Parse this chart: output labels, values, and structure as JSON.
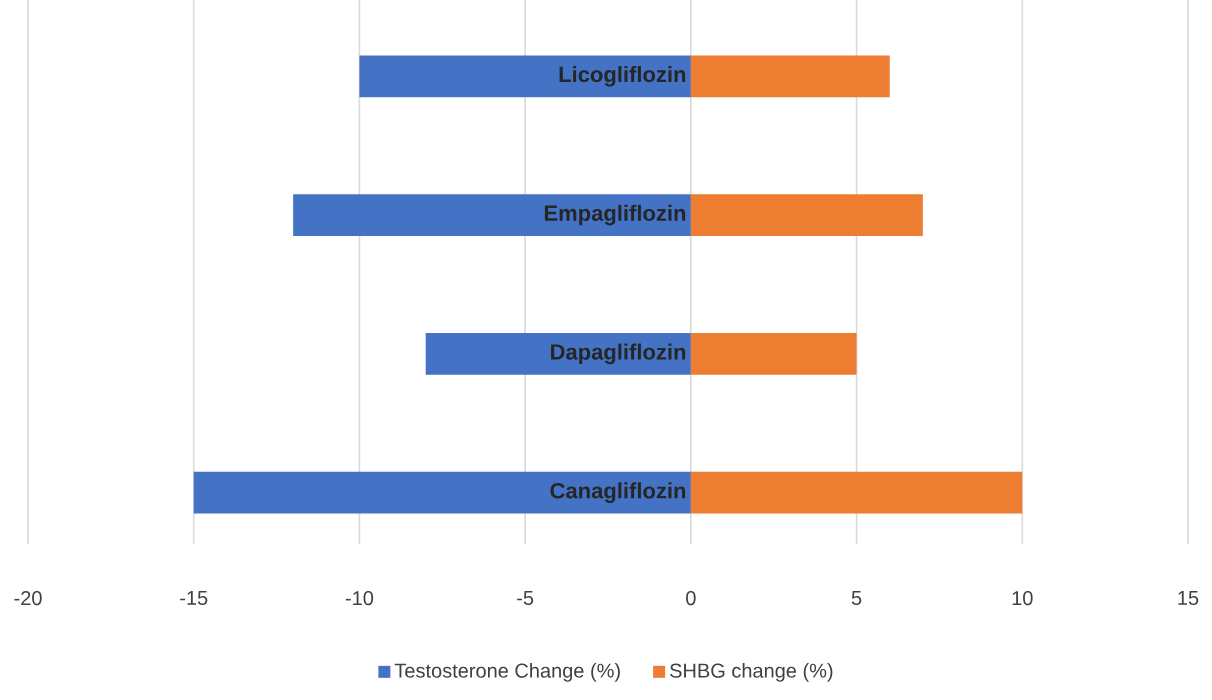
{
  "chart_data": {
    "type": "bar",
    "orientation": "horizontal",
    "stacked": true,
    "categories": [
      "Licogliflozin",
      "Empagliflozin",
      "Dapagliflozin",
      "Canagliflozin"
    ],
    "series": [
      {
        "name": "Testosterone Change (%)",
        "color": "#4472c4",
        "values": [
          -10,
          -12,
          -8,
          -15
        ]
      },
      {
        "name": "SHBG change (%)",
        "color": "#ed7d31",
        "values": [
          6,
          7,
          5,
          10
        ]
      }
    ],
    "xlim": [
      -20,
      15
    ],
    "xticks": [
      -20,
      -15,
      -10,
      -5,
      0,
      5,
      10,
      15
    ],
    "grid": "x",
    "legend": "bottom"
  }
}
